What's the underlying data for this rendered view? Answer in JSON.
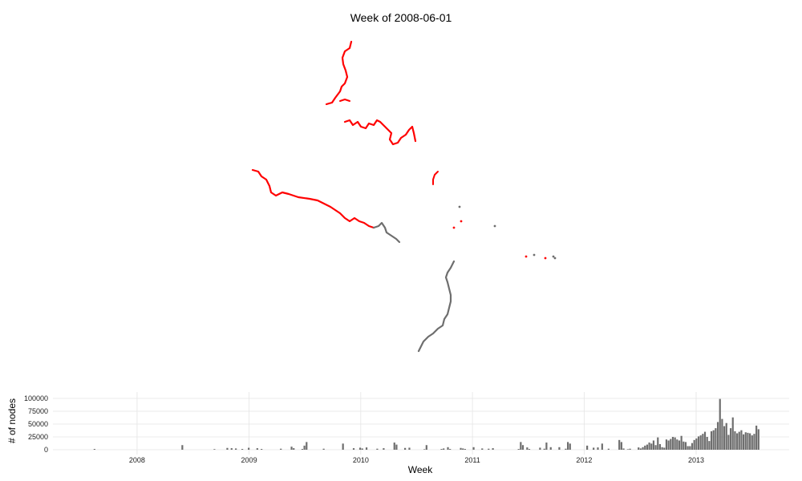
{
  "title": "Week of 2008-06-01",
  "colors": {
    "current": "#ff0000",
    "past": "#6e6e6e",
    "bar": "#6e6e6e",
    "grid": "#e5e5e5"
  },
  "chart_data": [
    {
      "type": "scatter",
      "description_of_series": "map of node traces",
      "series": [
        {
          "highlight": "current",
          "color": "#ff0000"
        },
        {
          "highlight": "past",
          "color": "#6e6e6e"
        }
      ]
    },
    {
      "type": "bar",
      "xlabel": "Week",
      "ylabel": "# of nodes",
      "yticks": [
        0,
        25000,
        50000,
        75000,
        100000
      ],
      "ytick_labels": [
        "0",
        "25000",
        "50000",
        "75000",
        "100000"
      ],
      "ylim": [
        0,
        100000
      ],
      "xticks": [
        "2008",
        "2009",
        "2010",
        "2011",
        "2012",
        "2013"
      ],
      "xlim": [
        "2007-04-01",
        "2013-11-01"
      ],
      "highlight_week": "2008-06-01",
      "weeks_start": "2007-07-01",
      "values": [
        0,
        0,
        0,
        0,
        0,
        0,
        1500,
        0,
        0,
        0,
        0,
        0,
        0,
        0,
        0,
        0,
        0,
        0,
        0,
        0,
        0,
        0,
        0,
        0,
        0,
        0,
        0,
        0,
        0,
        0,
        0,
        0,
        0,
        0,
        0,
        0,
        0,
        0,
        0,
        0,
        0,
        0,
        0,
        0,
        0,
        0,
        0,
        9000,
        0,
        0,
        0,
        0,
        0,
        0,
        0,
        0,
        0,
        0,
        0,
        0,
        0,
        0,
        1200,
        0,
        0,
        0,
        0,
        0,
        3500,
        0,
        3000,
        0,
        2500,
        0,
        0,
        1500,
        0,
        0,
        3800,
        0,
        0,
        0,
        3000,
        0,
        1500,
        0,
        0,
        0,
        0,
        0,
        0,
        0,
        0,
        2000,
        0,
        0,
        0,
        0,
        6000,
        3000,
        0,
        0,
        0,
        1500,
        8000,
        15000,
        0,
        0,
        0,
        0,
        0,
        0,
        0,
        2000,
        0,
        0,
        0,
        0,
        0,
        0,
        0,
        0,
        12000,
        0,
        0,
        0,
        0,
        3000,
        0,
        0,
        4000,
        2500,
        0,
        4500,
        0,
        0,
        0,
        0,
        2000,
        0,
        0,
        3000,
        0,
        0,
        0,
        0,
        14000,
        10000,
        0,
        0,
        0,
        3500,
        0,
        4000,
        0,
        0,
        0,
        0,
        0,
        0,
        1000,
        9000,
        0,
        0,
        0,
        0,
        0,
        0,
        1500,
        2500,
        0,
        5000,
        1500,
        0,
        0,
        0,
        0,
        3500,
        2500,
        1500,
        0,
        0,
        0,
        5000,
        0,
        0,
        0,
        2500,
        0,
        0,
        2000,
        0,
        3000,
        0,
        0,
        0,
        0,
        0,
        0,
        0,
        0,
        0,
        0,
        0,
        1500,
        15000,
        9000,
        0,
        4500,
        1500,
        0,
        0,
        0,
        0,
        4000,
        0,
        2000,
        14000,
        0,
        5000,
        0,
        0,
        0,
        5000,
        0,
        0,
        2000,
        15000,
        12000,
        0,
        0,
        0,
        0,
        0,
        0,
        0,
        8000,
        0,
        0,
        4000,
        0,
        4500,
        0,
        12000,
        0,
        0,
        2000,
        0,
        0,
        0,
        0,
        19000,
        15000,
        2500,
        0,
        1000,
        2000,
        0,
        0,
        0,
        4500,
        2500,
        5000,
        8000,
        10000,
        14000,
        12000,
        18000,
        9000,
        24000,
        11000,
        5000,
        4000,
        20000,
        18000,
        21000,
        25000,
        24000,
        20000,
        18000,
        27000,
        16000,
        15000,
        7000,
        7000,
        13000,
        19000,
        22000,
        26000,
        28000,
        31000,
        35000,
        25000,
        17000,
        36000,
        38000,
        42000,
        54000,
        99000,
        60000,
        46000,
        52000,
        29000,
        42000,
        63000,
        36000,
        32000,
        35000,
        38000,
        30000,
        34000,
        33000,
        32000,
        28000,
        31000,
        47000,
        40000
      ]
    }
  ]
}
